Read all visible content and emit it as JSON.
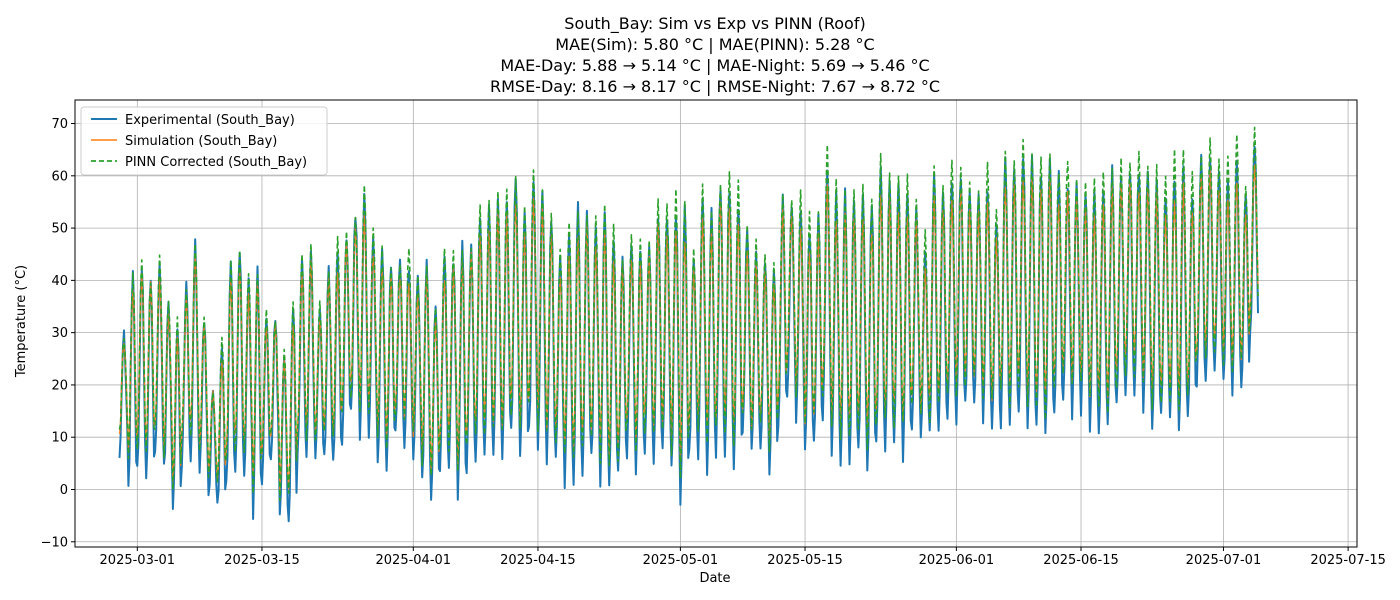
{
  "chart_data": {
    "type": "line",
    "title_lines": [
      "South_Bay: Sim vs Exp vs PINN (Roof)",
      "MAE(Sim): 5.80 °C | MAE(PINN): 5.28 °C",
      "MAE-Day: 5.88 → 5.14 °C | MAE-Night: 5.69 → 5.46 °C",
      "RMSE-Day: 8.16 → 8.17 °C | RMSE-Night: 7.67 → 8.72 °C"
    ],
    "xlabel": "Date",
    "ylabel": "Temperature (°C)",
    "xlim": [
      "2025-02-22",
      "2025-07-16"
    ],
    "ylim": [
      -11,
      74.5
    ],
    "x_ticks": [
      "2025-03-01",
      "2025-03-15",
      "2025-04-01",
      "2025-04-15",
      "2025-05-01",
      "2025-05-15",
      "2025-06-01",
      "2025-06-15",
      "2025-07-01",
      "2025-07-15"
    ],
    "y_ticks": [
      -10,
      0,
      10,
      20,
      30,
      40,
      50,
      60,
      70
    ],
    "grid": true,
    "legend_position": "top-left",
    "series": [
      {
        "name": "Experimental (South_Bay)",
        "color": "#1f77b4",
        "style": "solid",
        "x_start": "2025-02-27",
        "x_end": "2025-07-10",
        "daily_max": [
          29.2,
          41.5,
          42.8,
          41.0,
          43.1,
          35.2,
          30.5,
          39.5,
          47.0,
          33.0,
          19.0,
          26.0,
          43.0,
          45.8,
          40.0,
          41.8,
          33.0,
          32.5,
          25.0,
          34.5,
          43.8,
          45.1,
          34.6,
          41.5,
          45.9,
          49.0,
          53.2,
          55.9,
          47.5,
          46.0,
          43.5,
          42.8,
          43.0,
          39.5,
          43.0,
          35.0,
          44.0,
          44.3,
          46.5,
          47.2,
          53.0,
          53.5,
          55.1,
          54.8,
          60.1,
          52.5,
          58.3,
          56.5,
          52.0,
          44.0,
          49.1,
          53.5,
          53.3,
          49.5,
          53.5,
          47.5,
          45.0,
          47.0,
          46.0,
          45.5,
          53.1,
          52.7,
          53.2,
          54.0,
          43.0,
          54.8,
          52.7,
          58.6,
          57.8,
          54.8,
          48.8,
          44.6,
          43.5,
          41.8,
          55.5,
          53.5,
          53.0,
          50.0,
          51.5,
          61.5,
          55.5,
          56.2,
          55.6,
          56.0,
          54.6,
          61.0,
          59.0,
          58.0,
          56.5,
          53.0,
          44.5,
          59.0,
          56.5,
          58.8,
          60.5,
          57.0,
          55.8,
          58.0,
          52.0,
          62.8,
          61.1,
          63.8,
          62.5,
          60.5,
          63.5,
          60.0,
          58.6,
          57.5,
          56.8,
          55.5,
          57.0,
          60.6,
          59.8,
          61.0,
          61.2,
          60.4,
          58.5,
          56.0,
          60.3,
          60.8,
          56.6,
          62.5,
          63.6,
          59.5,
          58.5,
          63.0,
          55.5,
          66.3
        ],
        "daily_min": [
          7.0,
          0.5,
          3.2,
          1.8,
          6.5,
          3.5,
          -4.6,
          4.5,
          6.2,
          3.0,
          -1.5,
          -3.5,
          1.5,
          4.0,
          3.0,
          -4.5,
          2.0,
          5.8,
          -6.2,
          -5.0,
          5.5,
          6.3,
          5.5,
          5.5,
          4.5,
          10.0,
          14.5,
          10.5,
          9.5,
          5.5,
          5.0,
          10.5,
          7.5,
          5.5,
          1.0,
          -2.2,
          3.5,
          4.5,
          -2.5,
          4.5,
          6.0,
          5.5,
          6.5,
          6.5,
          10.5,
          5.5,
          11.5,
          7.5,
          5.8,
          6.5,
          1.2,
          1.0,
          4.0,
          5.5,
          1.5,
          1.0,
          2.5,
          7.0,
          4.0,
          7.5,
          5.5,
          6.5,
          3.5,
          -1.5,
          8.0,
          6.5,
          3.5,
          7.5,
          5.5,
          4.0,
          10.5,
          6.5,
          7.5,
          4.0,
          11.5,
          18.5,
          12.5,
          7.0,
          8.5,
          14.0,
          6.0,
          5.5,
          6.0,
          7.5,
          4.0,
          8.0,
          7.5,
          9.0,
          6.5,
          11.5,
          9.5,
          10.5,
          11.5,
          13.5,
          13.5,
          15.5,
          16.5,
          12.5,
          11.5,
          13.0,
          12.5,
          14.5,
          10.5,
          11.5,
          10.5,
          14.5,
          17.5,
          14.5,
          15.5,
          12.5,
          11.5,
          11.5,
          16.5,
          18.5,
          18.0,
          14.5,
          11.5,
          13.5,
          13.5,
          12.5,
          13.5,
          20.0,
          20.5,
          21.5,
          20.5,
          19.0,
          19.5,
          28.8
        ]
      },
      {
        "name": "Simulation (South_Bay)",
        "color": "#ff7f0e",
        "style": "solid"
      },
      {
        "name": "PINN Corrected (South_Bay)",
        "color": "#2ca02c",
        "style": "dashed"
      }
    ]
  }
}
